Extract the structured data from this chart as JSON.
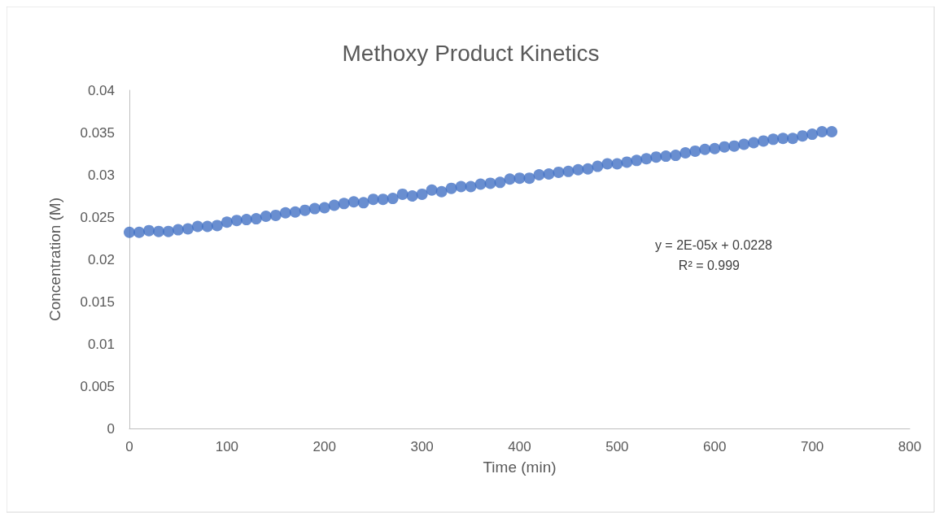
{
  "chart_data": {
    "type": "scatter",
    "title": "Methoxy Product Kinetics",
    "xlabel": "Time (min)",
    "ylabel": "Concentration (M)",
    "annotations": [
      "y = 2E-05x + 0.0228",
      "R² = 0.999"
    ],
    "x": [
      0,
      10,
      20,
      30,
      40,
      50,
      60,
      70,
      80,
      90,
      100,
      110,
      120,
      130,
      140,
      150,
      160,
      170,
      180,
      190,
      200,
      210,
      220,
      230,
      240,
      250,
      260,
      270,
      280,
      290,
      300,
      310,
      320,
      330,
      340,
      350,
      360,
      370,
      380,
      390,
      400,
      410,
      420,
      430,
      440,
      450,
      460,
      470,
      480,
      490,
      500,
      510,
      520,
      530,
      540,
      550,
      560,
      570,
      580,
      590,
      600,
      610,
      620,
      630,
      640,
      650,
      660,
      670,
      680,
      690,
      700,
      710,
      720
    ],
    "series": [
      {
        "color": "#4472c4",
        "values": [
          0.0232,
          0.0232,
          0.0234,
          0.0233,
          0.0233,
          0.0235,
          0.0236,
          0.0239,
          0.0239,
          0.024,
          0.0244,
          0.0246,
          0.0247,
          0.0248,
          0.0251,
          0.0252,
          0.0255,
          0.0256,
          0.0258,
          0.026,
          0.0261,
          0.0264,
          0.0266,
          0.0268,
          0.0267,
          0.0271,
          0.0271,
          0.0272,
          0.0277,
          0.0275,
          0.0277,
          0.0282,
          0.028,
          0.0284,
          0.0286,
          0.0286,
          0.0289,
          0.029,
          0.0291,
          0.0295,
          0.0296,
          0.0296,
          0.03,
          0.0301,
          0.0303,
          0.0304,
          0.0306,
          0.0307,
          0.031,
          0.0313,
          0.0313,
          0.0315,
          0.0317,
          0.0319,
          0.0321,
          0.0322,
          0.0323,
          0.0326,
          0.0328,
          0.033,
          0.0331,
          0.0333,
          0.0334,
          0.0336,
          0.0338,
          0.034,
          0.0342,
          0.0343,
          0.0343,
          0.0346,
          0.0348,
          0.0351,
          0.0351
        ]
      }
    ],
    "xlim": [
      0,
      800
    ],
    "xticks": [
      0,
      100,
      200,
      300,
      400,
      500,
      600,
      700,
      800
    ],
    "ylim": [
      0,
      0.04
    ],
    "yticks": [
      0,
      0.005,
      0.01,
      0.015,
      0.02,
      0.025,
      0.03,
      0.035,
      0.04
    ],
    "grid": false,
    "marker": "circle"
  }
}
